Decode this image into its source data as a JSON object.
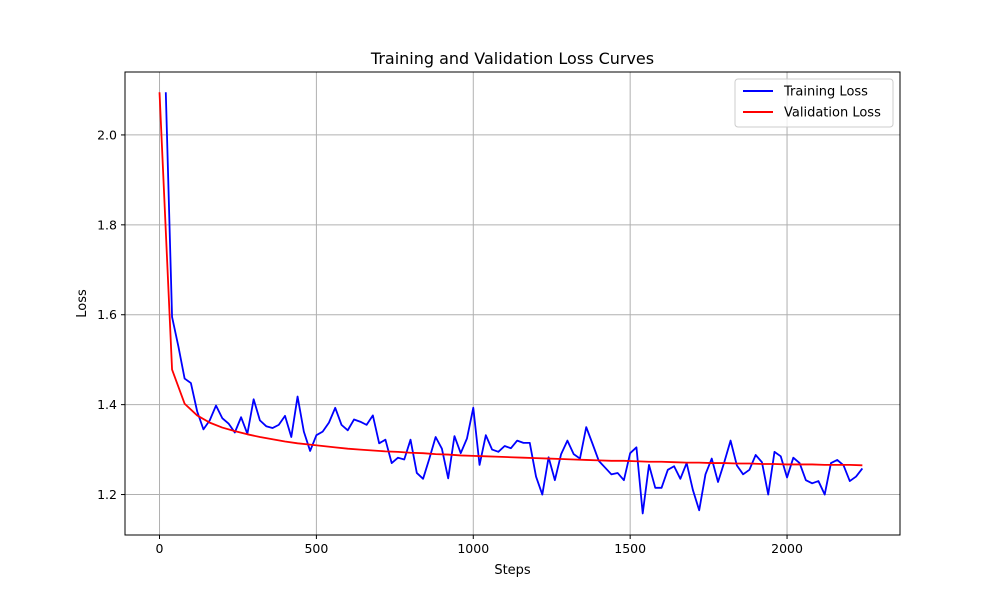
{
  "chart_data": {
    "type": "line",
    "title": "Training and Validation Loss Curves",
    "xlabel": "Steps",
    "ylabel": "Loss",
    "xlim": [
      -110,
      2360
    ],
    "ylim": [
      1.11,
      2.14
    ],
    "xticks": [
      0,
      500,
      1000,
      1500,
      2000
    ],
    "yticks": [
      1.2,
      1.4,
      1.6,
      1.8,
      2.0
    ],
    "xtick_labels": [
      "0",
      "500",
      "1000",
      "1500",
      "2000"
    ],
    "ytick_labels": [
      "1.2",
      "1.4",
      "1.6",
      "1.8",
      "2.0"
    ],
    "grid": true,
    "legend_position": "top-right",
    "series": [
      {
        "name": "Training Loss",
        "color": "#0000ff",
        "x": [
          20,
          40,
          60,
          80,
          100,
          120,
          140,
          160,
          180,
          200,
          220,
          240,
          260,
          280,
          300,
          320,
          340,
          360,
          380,
          400,
          420,
          440,
          460,
          480,
          500,
          520,
          540,
          560,
          580,
          600,
          620,
          640,
          660,
          680,
          700,
          720,
          740,
          760,
          780,
          800,
          820,
          840,
          860,
          880,
          900,
          920,
          940,
          960,
          980,
          1000,
          1020,
          1040,
          1060,
          1080,
          1100,
          1120,
          1140,
          1160,
          1180,
          1200,
          1220,
          1240,
          1260,
          1280,
          1300,
          1320,
          1340,
          1360,
          1380,
          1400,
          1420,
          1440,
          1460,
          1480,
          1500,
          1520,
          1540,
          1560,
          1580,
          1600,
          1620,
          1640,
          1660,
          1680,
          1700,
          1720,
          1740,
          1760,
          1780,
          1800,
          1820,
          1840,
          1860,
          1880,
          1900,
          1920,
          1940,
          1960,
          1980,
          2000,
          2020,
          2040,
          2060,
          2080,
          2100,
          2120,
          2140,
          2160,
          2180,
          2200,
          2220,
          2240
        ],
        "values": [
          2.095,
          1.595,
          1.53,
          1.458,
          1.448,
          1.385,
          1.345,
          1.365,
          1.398,
          1.37,
          1.358,
          1.338,
          1.372,
          1.335,
          1.412,
          1.365,
          1.352,
          1.348,
          1.355,
          1.375,
          1.328,
          1.418,
          1.34,
          1.297,
          1.332,
          1.34,
          1.36,
          1.393,
          1.355,
          1.343,
          1.367,
          1.362,
          1.355,
          1.376,
          1.314,
          1.322,
          1.27,
          1.282,
          1.278,
          1.322,
          1.248,
          1.235,
          1.28,
          1.328,
          1.302,
          1.236,
          1.33,
          1.292,
          1.325,
          1.393,
          1.266,
          1.332,
          1.3,
          1.295,
          1.308,
          1.303,
          1.32,
          1.315,
          1.315,
          1.24,
          1.2,
          1.283,
          1.232,
          1.29,
          1.32,
          1.29,
          1.28,
          1.35,
          1.313,
          1.275,
          1.26,
          1.245,
          1.248,
          1.232,
          1.292,
          1.305,
          1.158,
          1.266,
          1.215,
          1.215,
          1.255,
          1.263,
          1.235,
          1.27,
          1.21,
          1.165,
          1.245,
          1.28,
          1.228,
          1.272,
          1.32,
          1.265,
          1.245,
          1.255,
          1.288,
          1.272,
          1.2,
          1.295,
          1.285,
          1.238,
          1.282,
          1.27,
          1.232,
          1.225,
          1.23,
          1.2,
          1.27,
          1.277,
          1.265,
          1.23,
          1.24,
          1.258
        ]
      },
      {
        "name": "Validation Loss",
        "color": "#ff0000",
        "x": [
          0,
          40,
          80,
          120,
          160,
          200,
          240,
          280,
          320,
          360,
          400,
          440,
          480,
          520,
          560,
          600,
          640,
          680,
          720,
          760,
          800,
          840,
          880,
          920,
          960,
          1000,
          1040,
          1080,
          1120,
          1160,
          1200,
          1240,
          1280,
          1320,
          1360,
          1400,
          1440,
          1480,
          1520,
          1560,
          1600,
          1640,
          1680,
          1720,
          1760,
          1800,
          1840,
          1880,
          1920,
          1960,
          2000,
          2040,
          2080,
          2120,
          2160,
          2200,
          2240
        ],
        "values": [
          2.095,
          1.478,
          1.402,
          1.376,
          1.36,
          1.349,
          1.341,
          1.334,
          1.328,
          1.323,
          1.318,
          1.314,
          1.311,
          1.308,
          1.305,
          1.302,
          1.3,
          1.298,
          1.296,
          1.295,
          1.293,
          1.292,
          1.29,
          1.289,
          1.287,
          1.286,
          1.285,
          1.284,
          1.283,
          1.282,
          1.281,
          1.28,
          1.279,
          1.278,
          1.277,
          1.276,
          1.275,
          1.275,
          1.274,
          1.273,
          1.273,
          1.272,
          1.271,
          1.271,
          1.27,
          1.27,
          1.269,
          1.269,
          1.268,
          1.268,
          1.267,
          1.267,
          1.267,
          1.266,
          1.266,
          1.266,
          1.265
        ]
      }
    ]
  }
}
